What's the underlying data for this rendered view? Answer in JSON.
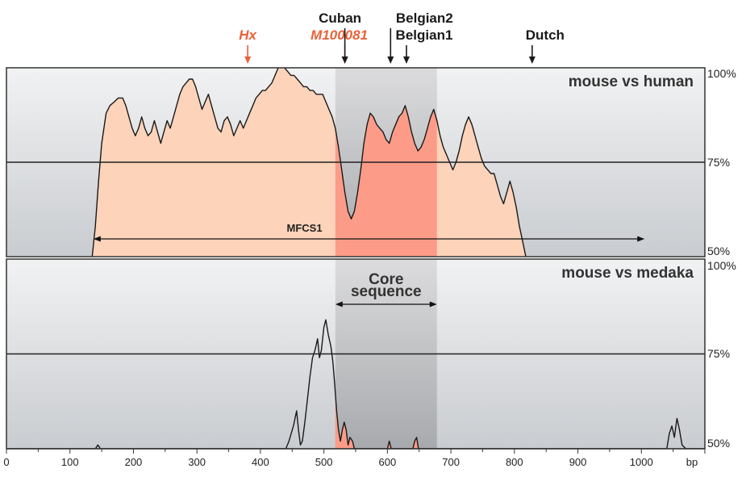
{
  "chart_data": {
    "type": "area",
    "x_unit": "bp",
    "x_ticks": [
      0,
      100,
      200,
      300,
      400,
      500,
      600,
      700,
      800,
      900,
      1000
    ],
    "xlim": [
      0,
      1100
    ],
    "colors": {
      "panel_bg": "#d2d5d8",
      "core_bg": "#a8a8aa",
      "conserved_fill": "#fdd3b9",
      "core_fill": "#fc9c88",
      "marker_red": "#e8613a",
      "marker_black": "#1a1a1a"
    },
    "markers": [
      {
        "label": "Hx",
        "x": 380,
        "color": "#e8613a",
        "italic": true
      },
      {
        "label": "M100081",
        "x": 533,
        "color": "#e8613a",
        "italic": true
      },
      {
        "label": "Cuban",
        "x": 533,
        "color": "#1a1a1a",
        "italic": false
      },
      {
        "label": "Belgian2",
        "x": 605,
        "color": "#1a1a1a",
        "italic": false
      },
      {
        "label": "Belgian1",
        "x": 630,
        "color": "#1a1a1a",
        "italic": false
      },
      {
        "label": "Dutch",
        "x": 828,
        "color": "#1a1a1a",
        "italic": false
      }
    ],
    "core_region": {
      "label_line1": "Core",
      "label_line2": "sequence",
      "x_start": 518,
      "x_end": 678
    },
    "panels": [
      {
        "label": "mouse vs human",
        "ylim": [
          50,
          100
        ],
        "y_ticks": [
          "100%",
          "75%",
          "50%"
        ],
        "threshold": 75,
        "annotation": {
          "label": "MFCS1",
          "x_start": 137,
          "x_end": 1005
        },
        "profile": [
          [
            135,
            50
          ],
          [
            140,
            58
          ],
          [
            145,
            70
          ],
          [
            150,
            80
          ],
          [
            157,
            88
          ],
          [
            163,
            90
          ],
          [
            170,
            91
          ],
          [
            176,
            92
          ],
          [
            183,
            92
          ],
          [
            188,
            90
          ],
          [
            193,
            87
          ],
          [
            198,
            84
          ],
          [
            203,
            82
          ],
          [
            208,
            84
          ],
          [
            213,
            87
          ],
          [
            218,
            84
          ],
          [
            223,
            82
          ],
          [
            228,
            83
          ],
          [
            233,
            86
          ],
          [
            238,
            83
          ],
          [
            243,
            80
          ],
          [
            248,
            83
          ],
          [
            253,
            86
          ],
          [
            258,
            84
          ],
          [
            263,
            87
          ],
          [
            268,
            90
          ],
          [
            273,
            93
          ],
          [
            278,
            95
          ],
          [
            283,
            96
          ],
          [
            288,
            97
          ],
          [
            293,
            97
          ],
          [
            298,
            95
          ],
          [
            303,
            92
          ],
          [
            308,
            89
          ],
          [
            313,
            91
          ],
          [
            318,
            93
          ],
          [
            323,
            90
          ],
          [
            328,
            87
          ],
          [
            333,
            84
          ],
          [
            338,
            83
          ],
          [
            343,
            86
          ],
          [
            348,
            87
          ],
          [
            353,
            85
          ],
          [
            358,
            82
          ],
          [
            363,
            84
          ],
          [
            368,
            86
          ],
          [
            373,
            84
          ],
          [
            378,
            86
          ],
          [
            383,
            88
          ],
          [
            388,
            90
          ],
          [
            393,
            92
          ],
          [
            398,
            93
          ],
          [
            403,
            94
          ],
          [
            408,
            94
          ],
          [
            413,
            95
          ],
          [
            418,
            96
          ],
          [
            423,
            98
          ],
          [
            428,
            100
          ],
          [
            433,
            101
          ],
          [
            438,
            100
          ],
          [
            443,
            99
          ],
          [
            448,
            98
          ],
          [
            453,
            98
          ],
          [
            458,
            97
          ],
          [
            463,
            96
          ],
          [
            468,
            95
          ],
          [
            473,
            95
          ],
          [
            478,
            94
          ],
          [
            483,
            94
          ],
          [
            488,
            93
          ],
          [
            493,
            93
          ],
          [
            498,
            93
          ],
          [
            503,
            91
          ],
          [
            508,
            89
          ],
          [
            513,
            87
          ],
          [
            518,
            84
          ],
          [
            523,
            79
          ],
          [
            528,
            73
          ],
          [
            533,
            67
          ],
          [
            538,
            62
          ],
          [
            543,
            60
          ],
          [
            548,
            62
          ],
          [
            553,
            67
          ],
          [
            558,
            73
          ],
          [
            563,
            80
          ],
          [
            568,
            85
          ],
          [
            573,
            88
          ],
          [
            578,
            87
          ],
          [
            583,
            85
          ],
          [
            588,
            84
          ],
          [
            593,
            83
          ],
          [
            598,
            81
          ],
          [
            603,
            80
          ],
          [
            608,
            83
          ],
          [
            613,
            85
          ],
          [
            618,
            87
          ],
          [
            623,
            88
          ],
          [
            628,
            90
          ],
          [
            633,
            87
          ],
          [
            638,
            83
          ],
          [
            643,
            80
          ],
          [
            648,
            78
          ],
          [
            653,
            79
          ],
          [
            658,
            81
          ],
          [
            663,
            84
          ],
          [
            668,
            87
          ],
          [
            673,
            89
          ],
          [
            678,
            86
          ],
          [
            683,
            82
          ],
          [
            688,
            79
          ],
          [
            693,
            77
          ],
          [
            698,
            75
          ],
          [
            703,
            73
          ],
          [
            708,
            75
          ],
          [
            713,
            78
          ],
          [
            718,
            82
          ],
          [
            723,
            85
          ],
          [
            728,
            87
          ],
          [
            733,
            85
          ],
          [
            738,
            82
          ],
          [
            743,
            79
          ],
          [
            748,
            76
          ],
          [
            753,
            74
          ],
          [
            758,
            73
          ],
          [
            763,
            72
          ],
          [
            768,
            72
          ],
          [
            773,
            69
          ],
          [
            778,
            66
          ],
          [
            783,
            64
          ],
          [
            788,
            67
          ],
          [
            793,
            70
          ],
          [
            798,
            67
          ],
          [
            803,
            63
          ],
          [
            808,
            58
          ],
          [
            813,
            54
          ],
          [
            818,
            50
          ]
        ]
      },
      {
        "label": "mouse vs medaka",
        "ylim": [
          50,
          100
        ],
        "y_ticks": [
          "100%",
          "75%",
          "50%"
        ],
        "threshold": 75,
        "profile": [
          [
            0,
            50
          ],
          [
            140,
            50
          ],
          [
            144,
            51
          ],
          [
            148,
            50
          ],
          [
            440,
            50
          ],
          [
            445,
            52
          ],
          [
            452,
            56
          ],
          [
            457,
            60
          ],
          [
            460,
            55
          ],
          [
            463,
            51
          ],
          [
            466,
            52
          ],
          [
            470,
            57
          ],
          [
            474,
            63
          ],
          [
            478,
            69
          ],
          [
            482,
            74
          ],
          [
            486,
            76
          ],
          [
            490,
            79
          ],
          [
            493,
            74
          ],
          [
            496,
            76
          ],
          [
            500,
            82
          ],
          [
            503,
            84
          ],
          [
            507,
            80
          ],
          [
            511,
            77
          ],
          [
            514,
            73
          ],
          [
            517,
            67
          ],
          [
            520,
            60
          ],
          [
            523,
            55
          ],
          [
            526,
            52
          ],
          [
            529,
            55
          ],
          [
            532,
            57
          ],
          [
            535,
            55
          ],
          [
            538,
            51
          ],
          [
            541,
            53
          ],
          [
            545,
            52
          ],
          [
            548,
            50
          ],
          [
            600,
            50
          ],
          [
            603,
            52
          ],
          [
            606,
            50
          ],
          [
            640,
            50
          ],
          [
            643,
            52
          ],
          [
            646,
            53
          ],
          [
            649,
            50
          ],
          [
            1040,
            50
          ],
          [
            1044,
            54
          ],
          [
            1048,
            56
          ],
          [
            1052,
            53
          ],
          [
            1056,
            58
          ],
          [
            1060,
            55
          ],
          [
            1064,
            51
          ],
          [
            1070,
            50
          ],
          [
            1100,
            50
          ]
        ]
      }
    ]
  }
}
